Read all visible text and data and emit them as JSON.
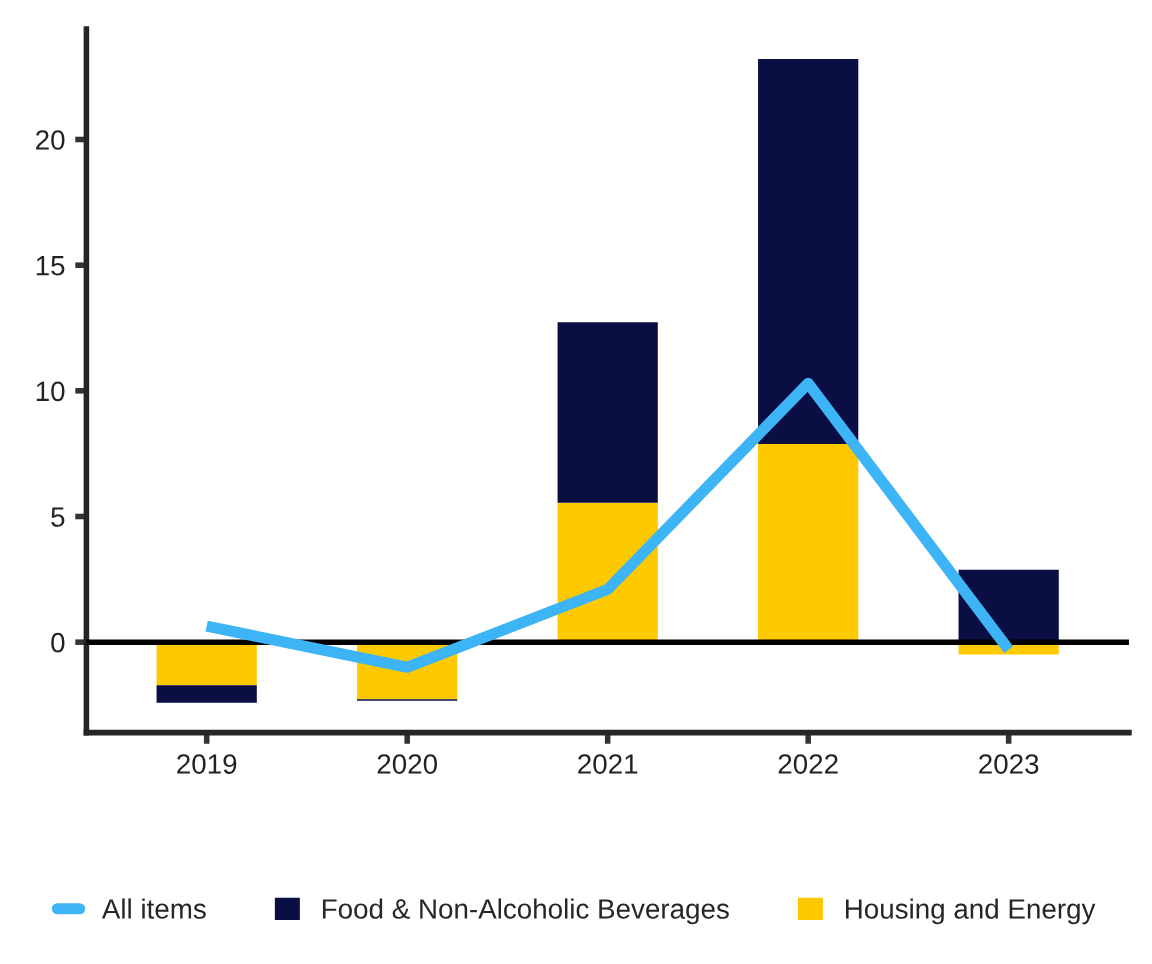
{
  "chart_data": {
    "type": "bar",
    "stacked": true,
    "categories": [
      "2019",
      "2020",
      "2021",
      "2022",
      "2023"
    ],
    "series": [
      {
        "name": "All items",
        "type": "line",
        "color": "#3cb4f5",
        "values": [
          0.64,
          -1.0,
          2.1,
          10.3,
          -0.3
        ]
      },
      {
        "name": "Housing and Energy",
        "color": "#ffc900",
        "values": [
          -1.71,
          -2.27,
          5.55,
          7.88,
          -0.49
        ]
      },
      {
        "name": "Food & Non-Alcoholic Beverages",
        "color": "#0a0e43",
        "values": [
          -0.7,
          -0.06,
          7.18,
          15.32,
          2.88
        ]
      }
    ],
    "ylim": [
      -3.6,
      24.4
    ],
    "yticks": [
      0,
      5,
      10,
      15,
      20
    ],
    "ref_lines": [
      {
        "axis": "y",
        "value": 0,
        "color": "#000000"
      }
    ],
    "grid": false,
    "legend": "bottom",
    "marker": "none",
    "line_style": "solid"
  }
}
